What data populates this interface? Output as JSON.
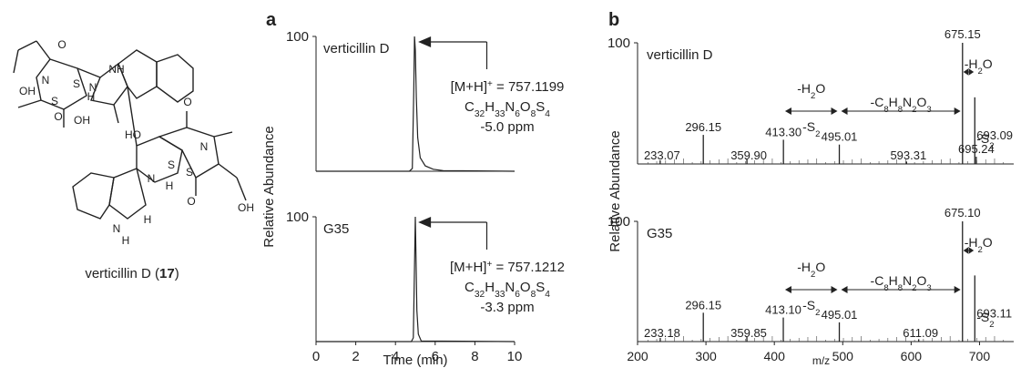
{
  "panel_labels": {
    "a": "a",
    "b": "b"
  },
  "compound": {
    "name": "verticillin D (",
    "number": "17",
    "close": ")"
  },
  "structure_labels": [
    "OH",
    "O",
    "H",
    "NH",
    "N",
    "S",
    "S",
    "N",
    "O",
    "OH",
    "HO",
    "O",
    "N",
    "S",
    "S",
    "N",
    "H",
    "H",
    "O",
    "OH",
    "N",
    "H"
  ],
  "chart_data": [
    {
      "panel": "a",
      "type": "line",
      "xlabel": "Time (min)",
      "ylabel": "Relative Abundance",
      "xlim": [
        0,
        10
      ],
      "xticks": [
        0,
        2,
        4,
        6,
        8,
        10
      ],
      "ylim": [
        0,
        100
      ],
      "yticks_label": "100",
      "traces": [
        {
          "name": "verticillin D",
          "x": [
            0,
            4.7,
            4.85,
            4.92,
            4.96,
            5.0,
            5.05,
            5.12,
            5.25,
            5.5,
            5.9,
            6.4,
            10
          ],
          "y": [
            0,
            0,
            2,
            60,
            100,
            90,
            55,
            25,
            10,
            4,
            1.5,
            0.5,
            0
          ],
          "annotation": {
            "ion": "[M+H]",
            "ion_sup": "+",
            "value": " = 757.1199",
            "formula": "C32H33N6O8S4",
            "ppm": "-5.0 ppm"
          }
        },
        {
          "name": "G35",
          "x": [
            0,
            4.8,
            4.9,
            4.96,
            5.0,
            5.03,
            5.08,
            5.15,
            5.3,
            10
          ],
          "y": [
            0,
            0,
            3,
            60,
            100,
            70,
            25,
            6,
            0.5,
            0
          ],
          "annotation": {
            "ion": "[M+H]",
            "ion_sup": "+",
            "value": " = 757.1212",
            "formula": "C32H33N6O8S4",
            "ppm": "-3.3 ppm"
          }
        }
      ]
    },
    {
      "panel": "b",
      "type": "bar",
      "xlabel": "m/z",
      "ylabel": "Relative Abundance",
      "xlim": [
        200,
        750
      ],
      "xticks": [
        200,
        300,
        400,
        500,
        600,
        700
      ],
      "ylim": [
        0,
        100
      ],
      "yticks_label": "100",
      "loss_labels": {
        "h2o": "-H2O",
        "s2": "-S2",
        "frag": "-C8H8N2O3"
      },
      "spectra": [
        {
          "name": "verticillin D",
          "peaks": [
            {
              "mz": 233.07,
              "intensity": 3,
              "label": "233.07"
            },
            {
              "mz": 296.15,
              "intensity": 24,
              "label": "296.15"
            },
            {
              "mz": 359.9,
              "intensity": 4,
              "label": "359.90"
            },
            {
              "mz": 413.3,
              "intensity": 20,
              "label": "413.30"
            },
            {
              "mz": 495.01,
              "intensity": 16,
              "label": "495.01"
            },
            {
              "mz": 593.31,
              "intensity": 2,
              "label": "593.31"
            },
            {
              "mz": 675.15,
              "intensity": 100,
              "label": "675.15"
            },
            {
              "mz": 693.09,
              "intensity": 55,
              "label": "693.09"
            },
            {
              "mz": 695.24,
              "intensity": 6,
              "label": "695.24"
            }
          ]
        },
        {
          "name": "G35",
          "peaks": [
            {
              "mz": 233.18,
              "intensity": 3,
              "label": "233.18"
            },
            {
              "mz": 296.15,
              "intensity": 24,
              "label": "296.15"
            },
            {
              "mz": 359.85,
              "intensity": 4,
              "label": "359.85"
            },
            {
              "mz": 413.1,
              "intensity": 20,
              "label": "413.10"
            },
            {
              "mz": 495.01,
              "intensity": 16,
              "label": "495.01"
            },
            {
              "mz": 611.09,
              "intensity": 2,
              "label": "611.09"
            },
            {
              "mz": 675.1,
              "intensity": 100,
              "label": "675.10"
            },
            {
              "mz": 693.11,
              "intensity": 55,
              "label": "693.11"
            }
          ]
        }
      ]
    }
  ]
}
